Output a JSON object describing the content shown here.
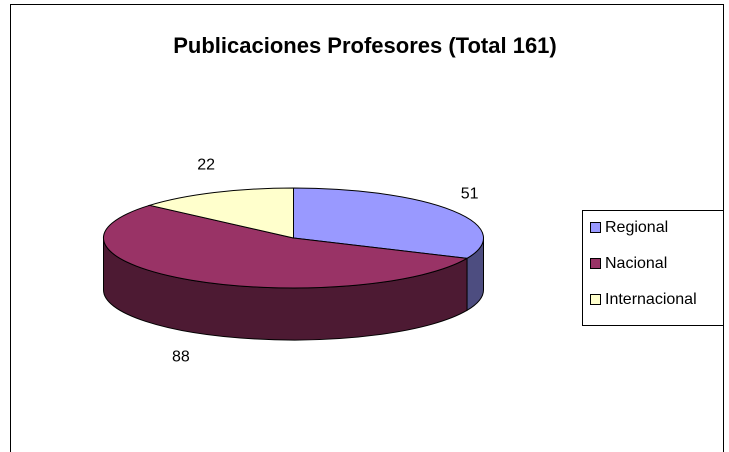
{
  "chart_data": {
    "type": "pie",
    "title": "Publicaciones Profesores (Total 161)",
    "categories": [
      "Regional",
      "Nacional",
      "Internacional"
    ],
    "values": [
      51,
      88,
      22
    ],
    "colors": [
      "#9999ff",
      "#993366",
      "#ffffcc"
    ],
    "legend": "right"
  }
}
